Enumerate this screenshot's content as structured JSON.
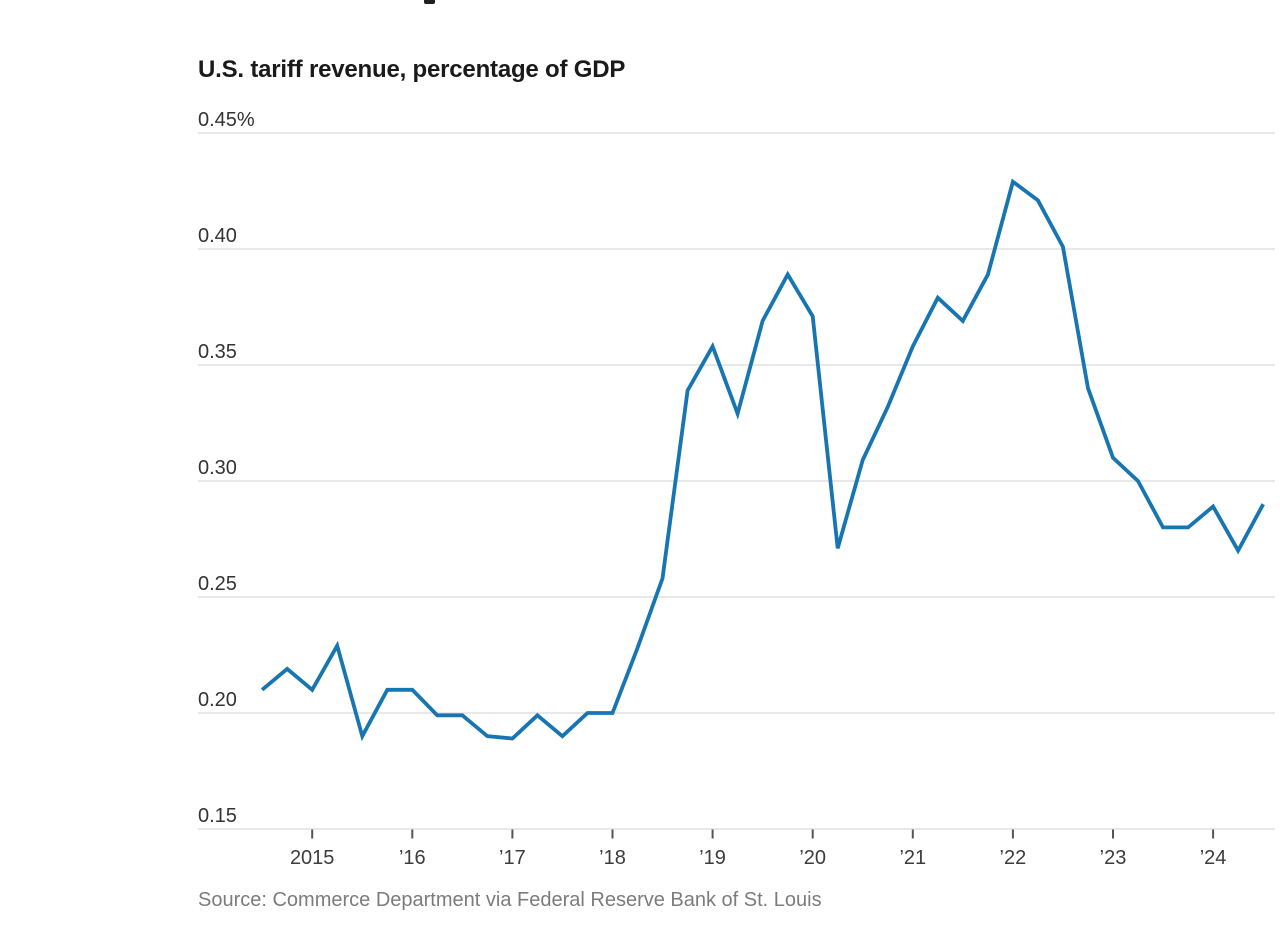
{
  "header": {
    "title": "U.S. tariff revenue, percentage of GDP"
  },
  "footer": {
    "source": "Source: Commerce Department via Federal Reserve Bank of St. Louis"
  },
  "chart_data": {
    "type": "line",
    "title": "U.S. tariff revenue, percentage of GDP",
    "unit": "percent of GDP",
    "frequency": "quarterly",
    "x": [
      "2014 Q3",
      "2014 Q4",
      "2015 Q1",
      "2015 Q2",
      "2015 Q3",
      "2015 Q4",
      "2016 Q1",
      "2016 Q2",
      "2016 Q3",
      "2016 Q4",
      "2017 Q1",
      "2017 Q2",
      "2017 Q3",
      "2017 Q4",
      "2018 Q1",
      "2018 Q2",
      "2018 Q3",
      "2018 Q4",
      "2019 Q1",
      "2019 Q2",
      "2019 Q3",
      "2019 Q4",
      "2020 Q1",
      "2020 Q2",
      "2020 Q3",
      "2020 Q4",
      "2021 Q1",
      "2021 Q2",
      "2021 Q3",
      "2021 Q4",
      "2022 Q1",
      "2022 Q2",
      "2022 Q3",
      "2022 Q4",
      "2023 Q1",
      "2023 Q2",
      "2023 Q3",
      "2023 Q4",
      "2024 Q1",
      "2024 Q2",
      "2024 Q3"
    ],
    "values": [
      0.21,
      0.219,
      0.21,
      0.229,
      0.19,
      0.21,
      0.21,
      0.199,
      0.199,
      0.19,
      0.189,
      0.199,
      0.19,
      0.2,
      0.2,
      0.228,
      0.258,
      0.339,
      0.358,
      0.329,
      0.369,
      0.389,
      0.371,
      0.271,
      0.309,
      0.332,
      0.358,
      0.379,
      0.369,
      0.389,
      0.429,
      0.421,
      0.401,
      0.34,
      0.31,
      0.3,
      0.28,
      0.28,
      0.289,
      0.27,
      0.29
    ],
    "x_ticks": [
      {
        "index": 2,
        "label": "2015"
      },
      {
        "index": 6,
        "label": "’16"
      },
      {
        "index": 10,
        "label": "’17"
      },
      {
        "index": 14,
        "label": "’18"
      },
      {
        "index": 18,
        "label": "’19"
      },
      {
        "index": 22,
        "label": "’20"
      },
      {
        "index": 26,
        "label": "’21"
      },
      {
        "index": 30,
        "label": "’22"
      },
      {
        "index": 34,
        "label": "’23"
      },
      {
        "index": 38,
        "label": "’24"
      }
    ],
    "y_ticks": [
      {
        "value": 0.45,
        "label": "0.45%"
      },
      {
        "value": 0.4,
        "label": "0.40"
      },
      {
        "value": 0.35,
        "label": "0.35"
      },
      {
        "value": 0.3,
        "label": "0.30"
      },
      {
        "value": 0.25,
        "label": "0.25"
      },
      {
        "value": 0.2,
        "label": "0.20"
      },
      {
        "value": 0.15,
        "label": "0.15"
      }
    ],
    "ylim": [
      0.15,
      0.45
    ],
    "grid": "horizontal",
    "legend": "none",
    "colors": {
      "line": "#1776b2",
      "grid": "#e0e0e0",
      "tick": "#555555"
    },
    "source": "Source: Commerce Department via Federal Reserve Bank of St. Louis"
  }
}
